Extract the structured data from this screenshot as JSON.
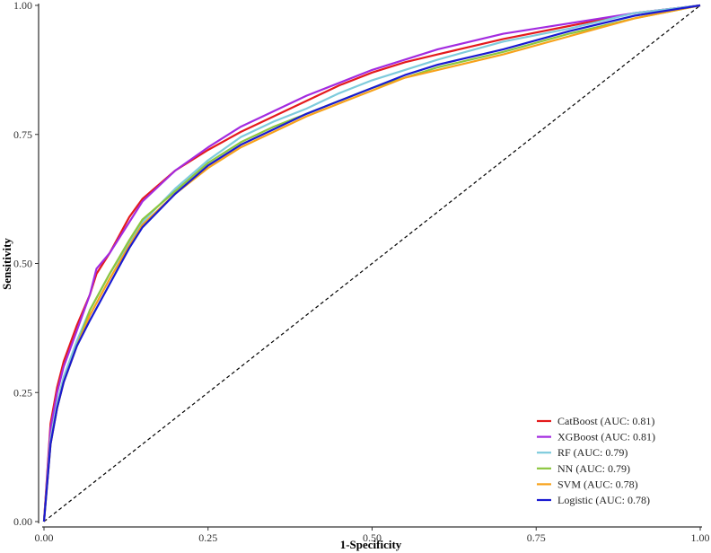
{
  "chart_data": {
    "type": "line",
    "title": "",
    "xlabel": "1-Specificity",
    "ylabel": "Sensitivity",
    "xlim": [
      0,
      1
    ],
    "ylim": [
      0,
      1
    ],
    "x_ticks": [
      "0.00",
      "0.25",
      "0.50",
      "0.75",
      "1.00"
    ],
    "y_ticks": [
      "0.00",
      "0.25",
      "0.50",
      "0.75",
      "1.00"
    ],
    "legend_position": "bottom-right",
    "grid": false,
    "reference_line": {
      "x": [
        0,
        1
      ],
      "y": [
        0,
        1
      ],
      "style": "dashed",
      "color": "#000000"
    },
    "series": [
      {
        "name": "CatBoost (AUC: 0.81)",
        "color": "#e41a1c",
        "x": [
          0,
          0.01,
          0.02,
          0.03,
          0.05,
          0.07,
          0.08,
          0.1,
          0.13,
          0.15,
          0.2,
          0.25,
          0.3,
          0.35,
          0.4,
          0.45,
          0.5,
          0.55,
          0.6,
          0.7,
          0.8,
          0.9,
          1.0
        ],
        "y": [
          0,
          0.19,
          0.26,
          0.31,
          0.38,
          0.44,
          0.48,
          0.52,
          0.59,
          0.625,
          0.68,
          0.72,
          0.755,
          0.785,
          0.815,
          0.845,
          0.87,
          0.89,
          0.905,
          0.935,
          0.96,
          0.985,
          1.0
        ]
      },
      {
        "name": "XGBoost (AUC: 0.81)",
        "color": "#a32be0",
        "x": [
          0,
          0.01,
          0.02,
          0.03,
          0.05,
          0.07,
          0.08,
          0.1,
          0.13,
          0.15,
          0.2,
          0.25,
          0.3,
          0.35,
          0.4,
          0.45,
          0.5,
          0.55,
          0.6,
          0.7,
          0.8,
          0.9,
          1.0
        ],
        "y": [
          0,
          0.18,
          0.25,
          0.3,
          0.37,
          0.44,
          0.49,
          0.52,
          0.58,
          0.62,
          0.68,
          0.725,
          0.765,
          0.795,
          0.825,
          0.85,
          0.875,
          0.895,
          0.915,
          0.945,
          0.965,
          0.985,
          1.0
        ]
      },
      {
        "name": "RF (AUC: 0.79)",
        "color": "#7ecbdc",
        "x": [
          0,
          0.01,
          0.02,
          0.03,
          0.05,
          0.07,
          0.1,
          0.13,
          0.15,
          0.2,
          0.25,
          0.3,
          0.35,
          0.4,
          0.45,
          0.5,
          0.55,
          0.6,
          0.7,
          0.8,
          0.9,
          1.0
        ],
        "y": [
          0,
          0.16,
          0.23,
          0.28,
          0.35,
          0.41,
          0.48,
          0.54,
          0.58,
          0.645,
          0.7,
          0.745,
          0.775,
          0.8,
          0.83,
          0.855,
          0.875,
          0.895,
          0.93,
          0.955,
          0.985,
          1.0
        ]
      },
      {
        "name": "NN (AUC: 0.79)",
        "color": "#8cc63f",
        "x": [
          0,
          0.01,
          0.02,
          0.03,
          0.05,
          0.07,
          0.1,
          0.13,
          0.15,
          0.2,
          0.25,
          0.3,
          0.35,
          0.4,
          0.45,
          0.5,
          0.55,
          0.6,
          0.7,
          0.8,
          0.9,
          1.0
        ],
        "y": [
          0,
          0.15,
          0.22,
          0.27,
          0.34,
          0.41,
          0.48,
          0.545,
          0.585,
          0.64,
          0.695,
          0.735,
          0.765,
          0.79,
          0.815,
          0.84,
          0.86,
          0.88,
          0.91,
          0.945,
          0.975,
          1.0
        ]
      },
      {
        "name": "SVM (AUC: 0.78)",
        "color": "#f7a21b",
        "x": [
          0,
          0.01,
          0.02,
          0.03,
          0.05,
          0.07,
          0.1,
          0.13,
          0.15,
          0.2,
          0.25,
          0.3,
          0.35,
          0.4,
          0.45,
          0.5,
          0.55,
          0.6,
          0.7,
          0.8,
          0.9,
          1.0
        ],
        "y": [
          0,
          0.15,
          0.22,
          0.27,
          0.34,
          0.4,
          0.47,
          0.535,
          0.575,
          0.635,
          0.685,
          0.725,
          0.755,
          0.785,
          0.81,
          0.835,
          0.86,
          0.875,
          0.905,
          0.94,
          0.975,
          1.0
        ]
      },
      {
        "name": "Logistic (AUC: 0.78)",
        "color": "#1a1ad1",
        "x": [
          0,
          0.01,
          0.02,
          0.03,
          0.05,
          0.07,
          0.1,
          0.13,
          0.15,
          0.2,
          0.25,
          0.3,
          0.35,
          0.4,
          0.45,
          0.5,
          0.55,
          0.6,
          0.7,
          0.8,
          0.9,
          1.0
        ],
        "y": [
          0,
          0.15,
          0.22,
          0.27,
          0.34,
          0.39,
          0.46,
          0.53,
          0.57,
          0.635,
          0.69,
          0.73,
          0.76,
          0.79,
          0.815,
          0.84,
          0.865,
          0.885,
          0.915,
          0.95,
          0.98,
          1.0
        ]
      }
    ]
  }
}
